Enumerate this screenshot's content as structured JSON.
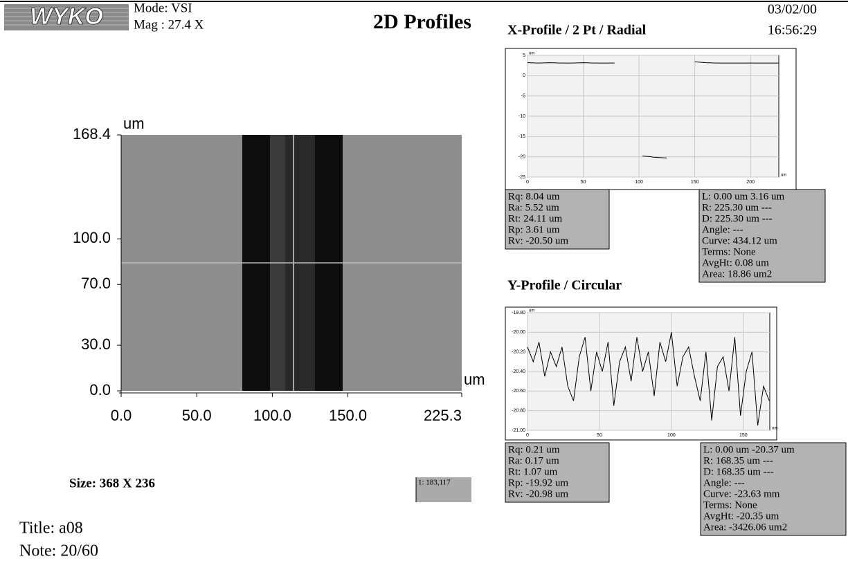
{
  "header": {
    "logo": "WYKO",
    "mode": "Mode: VSI",
    "mag": "Mag : 27.4 X",
    "title": "2D Profiles",
    "date": "03/02/00",
    "time": "16:56:29"
  },
  "image_plot": {
    "x_unit": "um",
    "y_unit": "um",
    "xlim": [
      0,
      225.3
    ],
    "ylim": [
      0,
      168.4
    ],
    "xticks": [
      {
        "value": 0,
        "label": "0.0"
      },
      {
        "value": 50,
        "label": "50.0"
      },
      {
        "value": 100,
        "label": "100.0"
      },
      {
        "value": 150,
        "label": "150.0"
      },
      225.3
    ],
    "yticks": [
      {
        "value": 0,
        "label": "0.0"
      },
      {
        "value": 30,
        "label": "30.0"
      },
      {
        "value": 70,
        "label": "70.0"
      },
      {
        "value": 100,
        "label": "100.0"
      },
      168.4
    ]
  },
  "size": "Size: 368 X 236",
  "cursor": "1: 183,117",
  "title": "Title: a08",
  "note": "Note: 20/60",
  "x_profile": {
    "title": "X-Profile / 2 Pt / Radial",
    "x_unit": "um",
    "y_unit": "um",
    "color": "#000000",
    "xlim": [
      0,
      225.3
    ],
    "ylim": [
      -25,
      5
    ],
    "xticks": [
      0,
      50,
      100,
      150,
      200
    ],
    "yticks": [
      5,
      0,
      -5,
      -10,
      -15,
      -20,
      -25
    ],
    "x": [
      0,
      10,
      20,
      30,
      40,
      50,
      60,
      70,
      78,
      90,
      103,
      108,
      113,
      118,
      125,
      140,
      150,
      160,
      170,
      180,
      190,
      200,
      210,
      225
    ],
    "values": [
      3.2,
      3.1,
      3.2,
      3.1,
      3.1,
      3.2,
      3.1,
      3.1,
      3.1,
      null,
      -19.8,
      -19.9,
      -20.1,
      -20.2,
      -20.3,
      null,
      3.4,
      3.2,
      3.1,
      3.1,
      3.1,
      3.1,
      3.1,
      3.1
    ],
    "stats_left": [
      "Rq:  8.04 um",
      "Ra:  5.52 um",
      "Rt:  24.11 um",
      "Rp:  3.61 um",
      "Rv:  -20.50 um"
    ],
    "stats_right": [
      "L:  0.00 um  3.16 um",
      "R:  225.30 um  ---",
      "D:  225.30 um  ---",
      "Angle:  ---",
      "Curve:  434.12 um",
      "Terms:  None",
      "AvgHt:  0.08 um",
      "Area:  18.86 um2"
    ]
  },
  "y_profile": {
    "title": "Y-Profile / Circular",
    "x_unit": "um",
    "y_unit": "um",
    "color": "#000000",
    "xlim": [
      0,
      168.35
    ],
    "ylim": [
      -21,
      -19.8
    ],
    "xticks": [
      0,
      50,
      100,
      150
    ],
    "yticks": [
      {
        "value": -19.8,
        "label": "-19.80"
      },
      {
        "value": -20,
        "label": "-20.00"
      },
      {
        "value": -20.2,
        "label": "-20.20"
      },
      {
        "value": -20.4,
        "label": "-20.40"
      },
      {
        "value": -20.6,
        "label": "-20.60"
      },
      {
        "value": -20.8,
        "label": "-20.80"
      },
      {
        "value": -21,
        "label": "-21.00"
      }
    ],
    "x": [
      0,
      4,
      8,
      12,
      16,
      20,
      24,
      28,
      32,
      36,
      40,
      44,
      48,
      52,
      56,
      60,
      64,
      68,
      72,
      76,
      80,
      84,
      88,
      92,
      96,
      100,
      104,
      108,
      112,
      116,
      120,
      124,
      128,
      132,
      136,
      140,
      144,
      148,
      152,
      156,
      160,
      164,
      168
    ],
    "values": [
      -20.15,
      -20.3,
      -20.1,
      -20.45,
      -20.2,
      -20.35,
      -20.15,
      -20.55,
      -20.7,
      -20.25,
      -20.05,
      -20.6,
      -20.2,
      -20.4,
      -20.1,
      -20.75,
      -20.3,
      -20.15,
      -20.5,
      -20.05,
      -20.4,
      -20.2,
      -20.65,
      -20.1,
      -20.3,
      -20.0,
      -20.55,
      -20.25,
      -20.15,
      -20.45,
      -20.7,
      -20.2,
      -20.9,
      -20.35,
      -20.25,
      -20.6,
      -20.05,
      -20.85,
      -20.4,
      -20.2,
      -20.95,
      -20.55,
      -20.7
    ],
    "stats_left": [
      "Rq:  0.21 um",
      "Ra:  0.17 um",
      "Rt:  1.07 um",
      "Rp:  -19.92 um",
      "Rv:  -20.98 um"
    ],
    "stats_right": [
      "L:  0.00 um  -20.37 um",
      "R:  168.35 um  ---",
      "D:  168.35 um  ---",
      "Angle:  ---",
      "Curve:  -23.63 mm",
      "Terms:  None",
      "AvgHt:  -20.35 um",
      "Area:  -3426.06 um2"
    ]
  }
}
